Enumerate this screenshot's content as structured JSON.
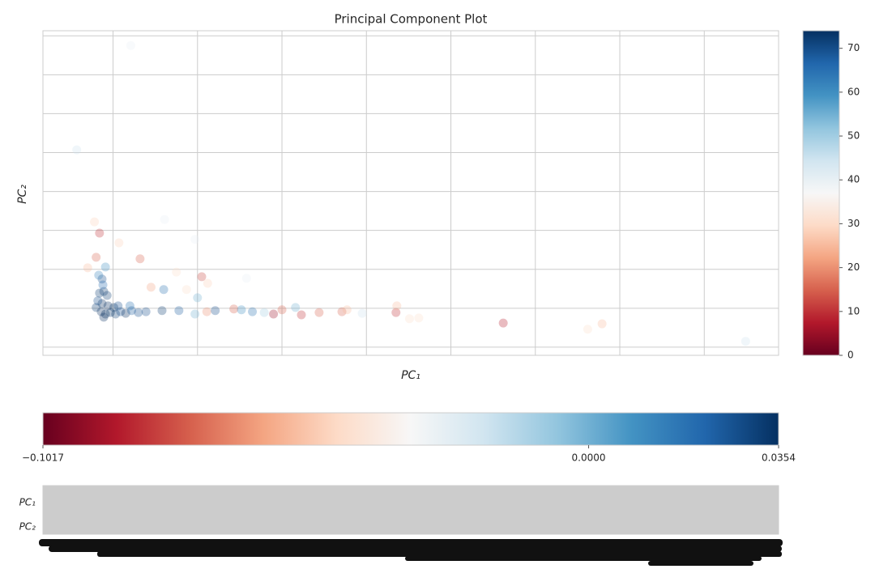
{
  "chart_data": {
    "type": "scatter",
    "title": "Principal Component Plot",
    "x_label": "PC₁",
    "y_label": "PC₂",
    "xlim": [
      -0.83,
      7.88
    ],
    "ylim": [
      -0.21,
      8.13
    ],
    "xticks": [
      0,
      1,
      2,
      3,
      4,
      5,
      6,
      7
    ],
    "yticks": [
      0,
      1,
      2,
      3,
      4,
      5,
      6,
      7,
      8
    ],
    "grid": true,
    "colormap": "RdBu",
    "alpha": 0.3,
    "x": [
      -0.43,
      0.21,
      -0.22,
      -0.16,
      -0.3,
      -0.2,
      0.07,
      0.32,
      1.05,
      1.12,
      0.45,
      0.6,
      0.75,
      0.87,
      1.0,
      -0.09,
      -0.13,
      -0.11,
      -0.13,
      -0.2,
      -0.18,
      -0.14,
      -0.09,
      -0.03,
      0.03,
      0.09,
      0.15,
      0.22,
      0.3,
      -0.16,
      -0.12,
      -0.17,
      -0.06,
      0.01,
      -0.11,
      0.06,
      0.2,
      -0.07,
      0.39,
      0.58,
      0.78,
      0.97,
      1.11,
      1.21,
      1.43,
      1.52,
      1.65,
      1.79,
      1.9,
      2.0,
      2.16,
      2.23,
      2.44,
      2.71,
      2.77,
      2.95,
      3.35,
      3.36,
      3.51,
      3.62,
      4.62,
      5.62,
      5.79,
      7.49,
      1.58,
      0.61,
      0.97
    ],
    "y": [
      5.07,
      7.75,
      3.22,
      2.93,
      2.04,
      2.31,
      2.68,
      2.27,
      1.81,
      1.64,
      1.54,
      1.48,
      1.93,
      1.48,
      1.27,
      2.06,
      1.75,
      1.43,
      1.12,
      1.02,
      1.19,
      0.91,
      0.85,
      0.89,
      0.85,
      0.91,
      0.87,
      0.94,
      0.89,
      1.39,
      1.6,
      1.85,
      1.06,
      1.02,
      0.77,
      1.06,
      1.06,
      1.33,
      0.91,
      0.94,
      0.94,
      0.85,
      0.91,
      0.94,
      0.98,
      0.96,
      0.91,
      0.89,
      0.85,
      0.96,
      1.02,
      0.83,
      0.89,
      0.91,
      0.96,
      0.87,
      0.89,
      1.06,
      0.73,
      0.75,
      0.62,
      0.46,
      0.6,
      0.15,
      1.77,
      3.28,
      2.77
    ],
    "c": [
      45,
      40,
      28,
      10,
      25,
      15,
      28,
      15,
      12,
      28,
      22,
      65,
      30,
      30,
      55,
      60,
      70,
      72,
      74,
      72,
      70,
      74,
      74,
      73,
      72,
      70,
      74,
      68,
      70,
      72,
      66,
      62,
      74,
      73,
      74,
      70,
      65,
      72,
      70,
      72,
      68,
      55,
      20,
      70,
      15,
      60,
      65,
      50,
      5,
      15,
      55,
      10,
      15,
      15,
      25,
      45,
      10,
      25,
      30,
      30,
      8,
      30,
      25,
      45,
      40,
      40,
      40
    ],
    "colorbar": {
      "lim": [
        0,
        74
      ],
      "ticks": [
        0,
        10,
        20,
        30,
        40,
        50,
        60,
        70
      ]
    },
    "heatmap": {
      "rows": [
        "PC₁",
        "PC₂"
      ],
      "colorbar": {
        "lim": [
          -0.1017,
          0.0354
        ],
        "ticks": [
          {
            "value": -0.1017,
            "label": "−0.1017"
          },
          {
            "value": 0,
            "label": "0.0000"
          },
          {
            "value": 0.0354,
            "label": "0.0354"
          }
        ]
      }
    }
  }
}
